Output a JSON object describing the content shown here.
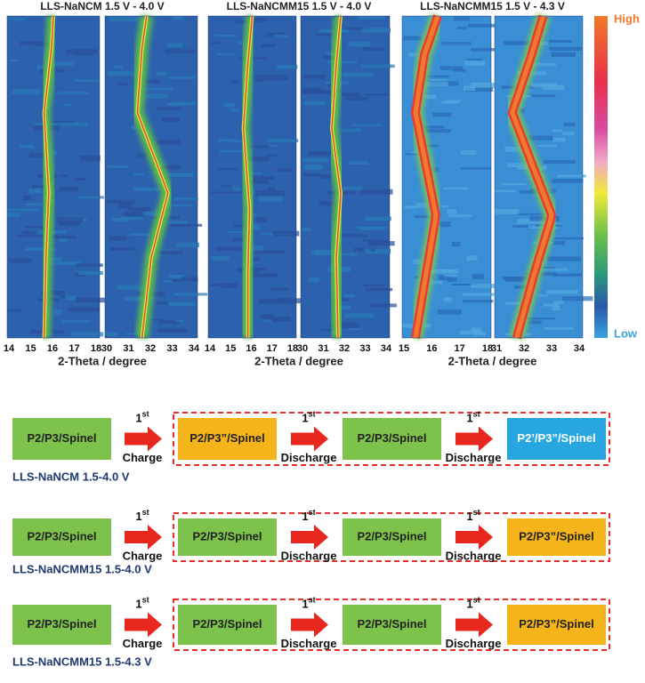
{
  "panels": [
    {
      "title": "LLS-NaNCM 1.5 V - 4.0 V",
      "xlabel": "2-Theta / degree",
      "subpanels": [
        {
          "ticks": [
            "14",
            "15",
            "16",
            "17",
            "18"
          ]
        },
        {
          "ticks": [
            "30",
            "31",
            "32",
            "33",
            "34"
          ]
        }
      ]
    },
    {
      "title": "LLS-NaNCMM15 1.5 V - 4.0 V",
      "xlabel": "2-Theta / degree",
      "subpanels": [
        {
          "ticks": [
            "14",
            "15",
            "16",
            "17",
            "18"
          ]
        },
        {
          "ticks": [
            "30",
            "31",
            "32",
            "33",
            "34"
          ]
        }
      ]
    },
    {
      "title": "LLS-NaNCMM15 1.5 V - 4.3 V",
      "xlabel": "2-Theta / degree",
      "subpanels": [
        {
          "ticks": [
            "15",
            "16",
            "17",
            "18"
          ]
        },
        {
          "ticks": [
            "31",
            "32",
            "33",
            "34"
          ]
        }
      ]
    }
  ],
  "colorbar": {
    "high": "High",
    "low": "Low"
  },
  "flows": [
    {
      "label": "LLS-NaNCM  1.5-4.0 V",
      "boxes": [
        {
          "text": "P2/P3/Spinel",
          "color": "#7dc24b"
        },
        {
          "text": "P2/P3”/Spinel",
          "color": "#f4b41a"
        },
        {
          "text": "P2/P3/Spinel",
          "color": "#7dc24b"
        },
        {
          "text": "P2’/P3”/Spinel",
          "color": "#27a6e0"
        }
      ],
      "arrows": [
        {
          "num": "1",
          "sup": "st",
          "text": "Charge"
        },
        {
          "num": "1",
          "sup": "st",
          "text": "Discharge"
        },
        {
          "num": "1",
          "sup": "st",
          "text": "Discharge"
        }
      ]
    },
    {
      "label": "LLS-NaNCMM15  1.5-4.0 V",
      "boxes": [
        {
          "text": "P2/P3/Spinel",
          "color": "#7dc24b"
        },
        {
          "text": "P2/P3/Spinel",
          "color": "#7dc24b"
        },
        {
          "text": "P2/P3/Spinel",
          "color": "#7dc24b"
        },
        {
          "text": "P2/P3”/Spinel",
          "color": "#f4b41a"
        }
      ],
      "arrows": [
        {
          "num": "1",
          "sup": "st",
          "text": "Charge"
        },
        {
          "num": "1",
          "sup": "st",
          "text": "Discharge"
        },
        {
          "num": "1",
          "sup": "st",
          "text": "Discharge"
        }
      ]
    },
    {
      "label": "LLS-NaNCMM15  1.5-4.3 V",
      "boxes": [
        {
          "text": "P2/P3/Spinel",
          "color": "#7dc24b"
        },
        {
          "text": "P2/P3/Spinel",
          "color": "#7dc24b"
        },
        {
          "text": "P2/P3/Spinel",
          "color": "#7dc24b"
        },
        {
          "text": "P2/P3”/Spinel",
          "color": "#f4b41a"
        }
      ],
      "arrows": [
        {
          "num": "1",
          "sup": "st",
          "text": "Charge"
        },
        {
          "num": "1",
          "sup": "st",
          "text": "Discharge"
        },
        {
          "num": "1",
          "sup": "st",
          "text": "Discharge"
        }
      ]
    }
  ]
}
